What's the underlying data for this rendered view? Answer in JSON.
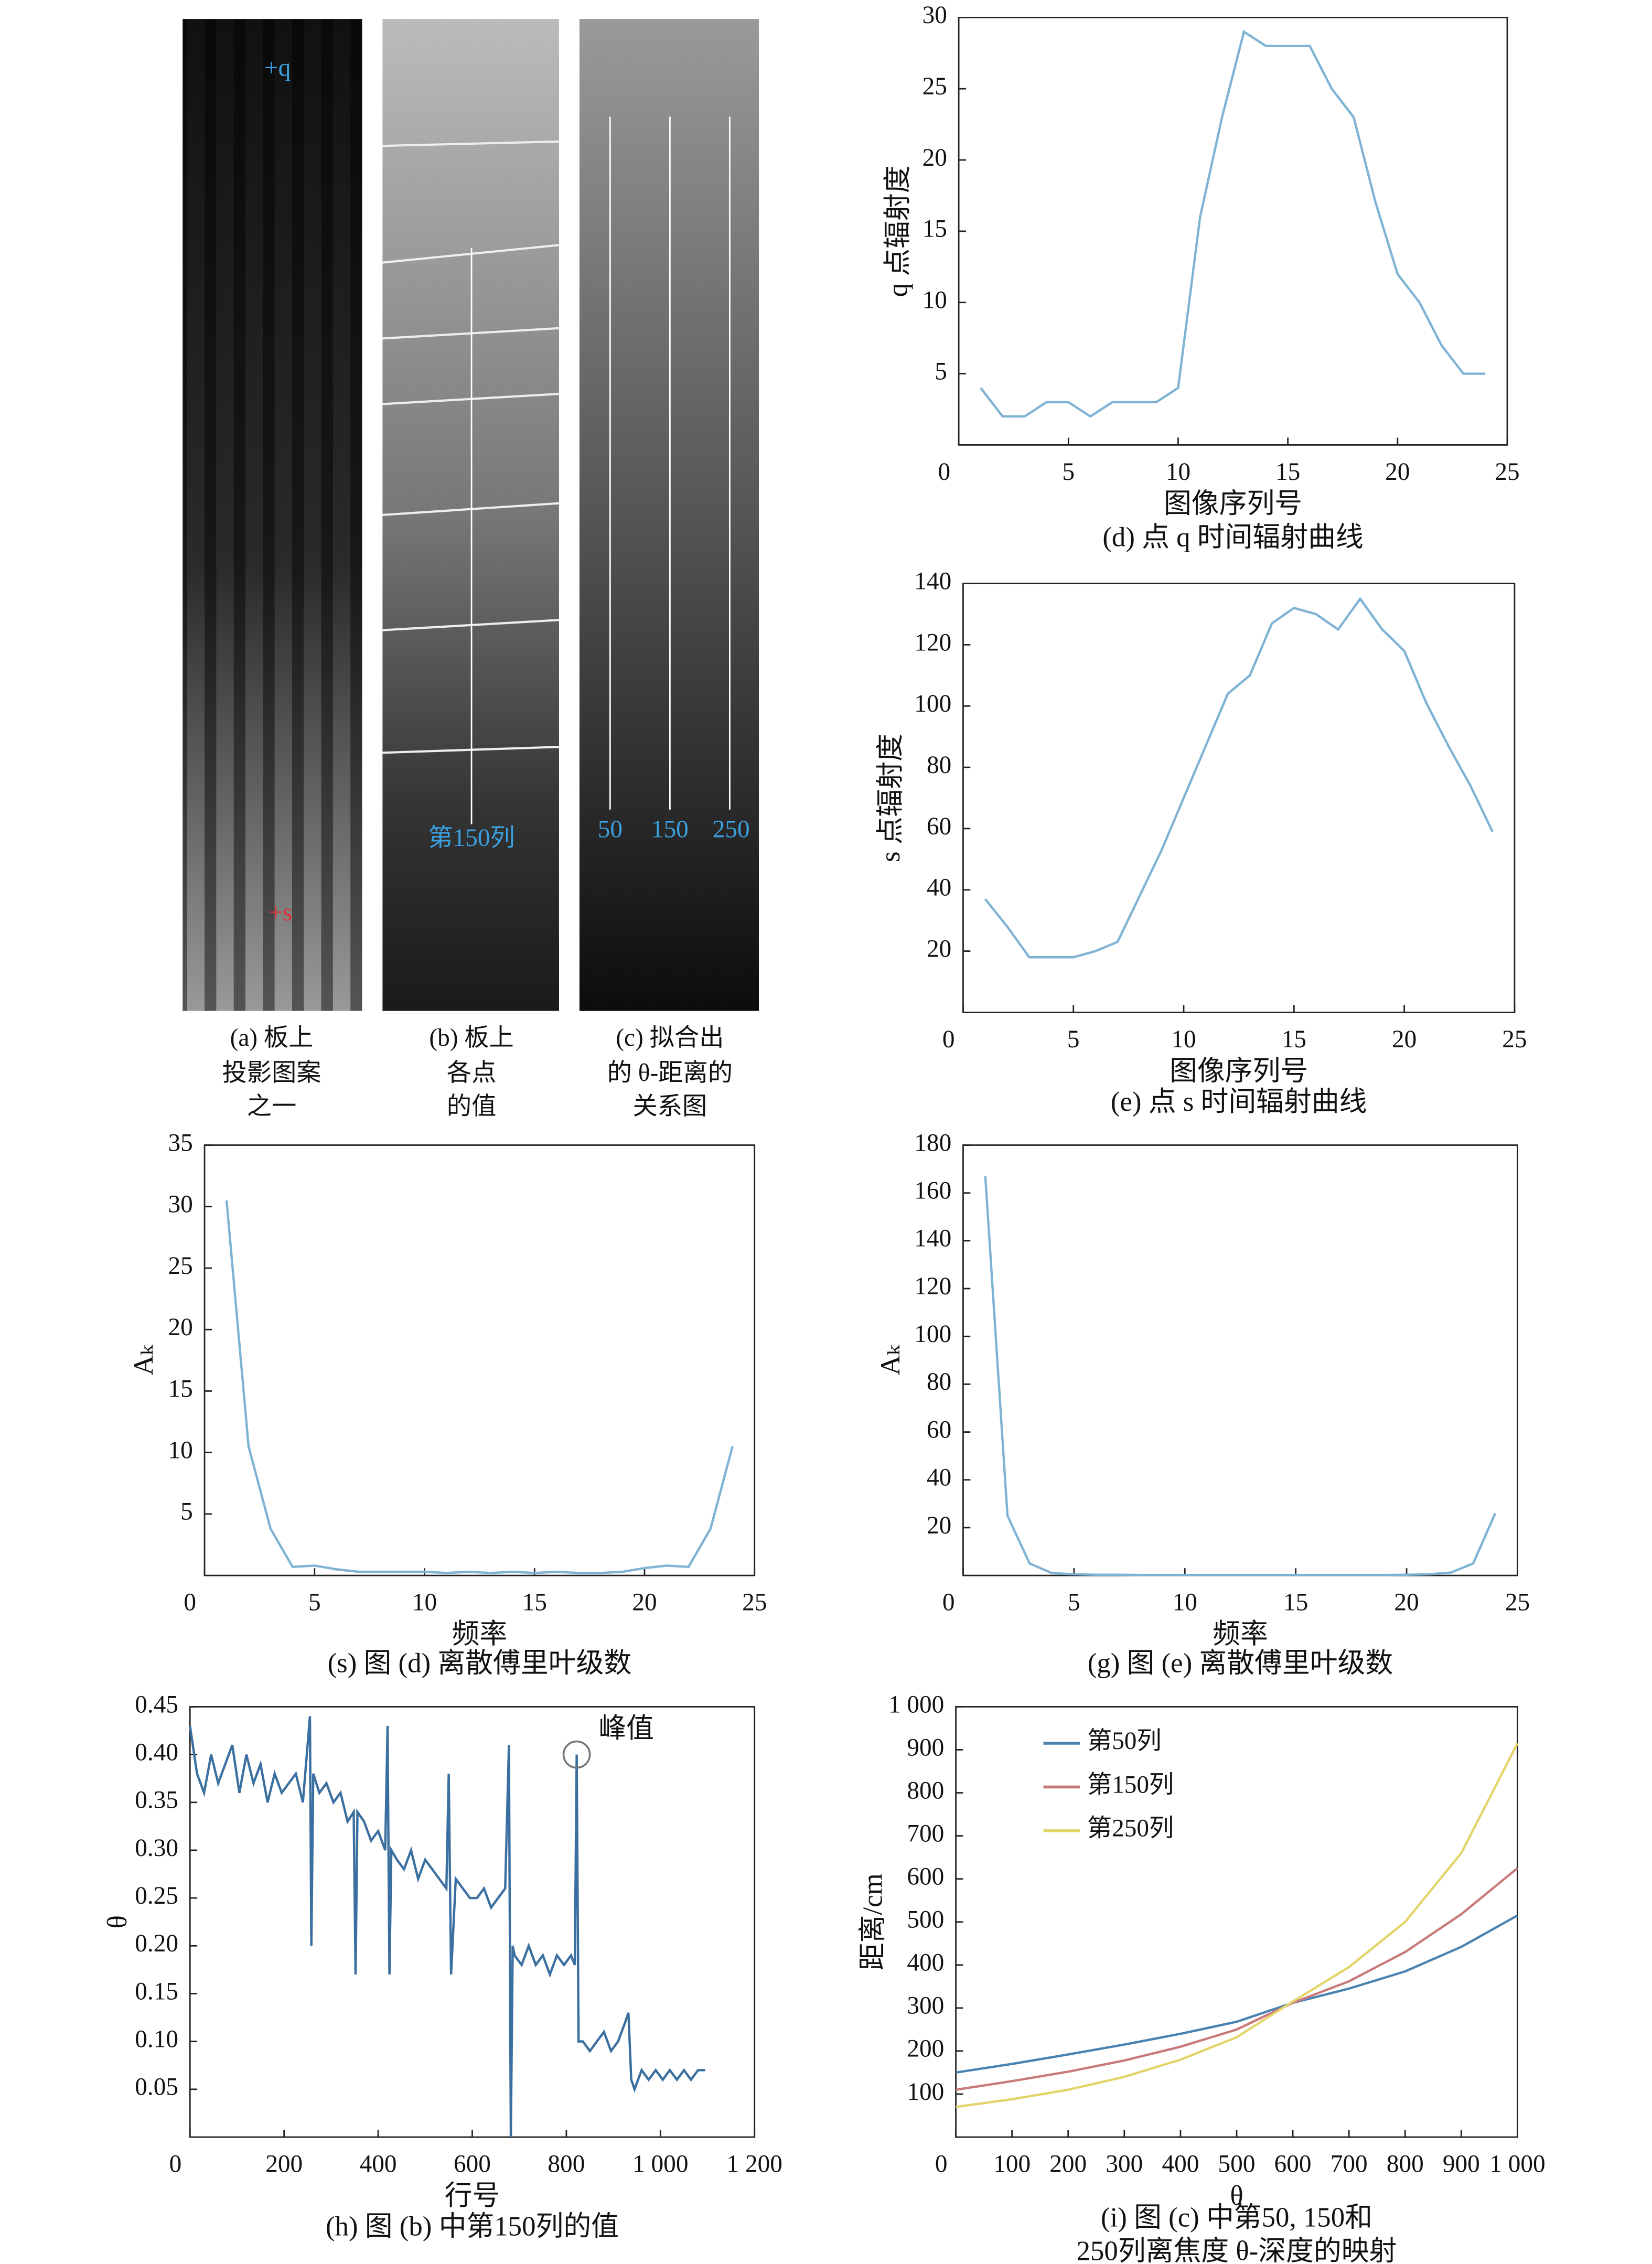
{
  "chart_data": [
    {
      "type": "image",
      "caption": [
        "(a) 板上",
        "投影图案",
        "之一"
      ],
      "annotations": [
        "+q",
        "+s"
      ]
    },
    {
      "type": "image",
      "caption": [
        "(b) 板上",
        "各点",
        "的值"
      ],
      "annotations": [
        "第150列"
      ]
    },
    {
      "type": "image",
      "caption": [
        "(c) 拟合出",
        "的 θ-距离的",
        "关系图"
      ],
      "annotations": [
        "50",
        "150",
        "250"
      ]
    },
    {
      "type": "line",
      "caption": [
        "(d) 点 q 时间辐射曲线"
      ],
      "xlabel": "图像序列号",
      "ylabel": "q 点辐射度",
      "color": "#7fb3d5",
      "x": [
        1,
        2,
        3,
        4,
        5,
        6,
        7,
        8,
        9,
        10,
        11,
        12,
        13,
        14,
        15,
        16,
        17,
        18,
        19,
        20,
        21,
        22,
        23,
        24
      ],
      "values": [
        4,
        2,
        2,
        3,
        3,
        2,
        3,
        3,
        3,
        4,
        16,
        23,
        29,
        28,
        28,
        28,
        25,
        23,
        17,
        12,
        10,
        7,
        5,
        5
      ],
      "xlim": [
        0,
        25
      ],
      "xticks": [
        0,
        5,
        10,
        15,
        20,
        25
      ],
      "ylim": [
        0,
        30
      ],
      "yticks": [
        5,
        10,
        15,
        20,
        25,
        30
      ]
    },
    {
      "type": "line",
      "caption": [
        "(e) 点 s 时间辐射曲线"
      ],
      "xlabel": "图像序列号",
      "ylabel": "s 点辐射度",
      "color": "#7fb3d5",
      "x": [
        1,
        2,
        3,
        4,
        5,
        6,
        7,
        8,
        9,
        10,
        11,
        12,
        13,
        14,
        15,
        16,
        17,
        18,
        19,
        20,
        21,
        22,
        23,
        24
      ],
      "values": [
        37,
        28,
        18,
        18,
        18,
        20,
        23,
        38,
        53,
        70,
        87,
        104,
        110,
        127,
        132,
        130,
        125,
        135,
        125,
        118,
        101,
        87,
        74,
        59
      ],
      "xlim": [
        0,
        25
      ],
      "xticks": [
        0,
        5,
        10,
        15,
        20,
        25
      ],
      "ylim": [
        0,
        140
      ],
      "yticks": [
        20,
        40,
        60,
        80,
        100,
        120,
        140
      ]
    },
    {
      "type": "line",
      "caption": [
        "(s) 图 (d) 离散傅里叶级数"
      ],
      "xlabel": "频率",
      "ylabel": "Aₖ",
      "color": "#7fb3d5",
      "x": [
        1,
        2,
        3,
        4,
        5,
        6,
        7,
        8,
        9,
        10,
        11,
        12,
        13,
        14,
        15,
        16,
        17,
        18,
        19,
        20,
        21,
        22,
        23,
        24
      ],
      "values": [
        30.5,
        10.5,
        3.8,
        0.7,
        0.8,
        0.5,
        0.3,
        0.3,
        0.3,
        0.3,
        0.2,
        0.3,
        0.2,
        0.3,
        0.2,
        0.3,
        0.2,
        0.2,
        0.3,
        0.6,
        0.8,
        0.7,
        3.8,
        10.5
      ],
      "xlim": [
        0,
        25
      ],
      "xticks": [
        0,
        5,
        10,
        15,
        20,
        25
      ],
      "ylim": [
        0,
        35
      ],
      "yticks": [
        5,
        10,
        15,
        20,
        25,
        30,
        35
      ]
    },
    {
      "type": "line",
      "caption": [
        "(g) 图 (e) 离散傅里叶级数"
      ],
      "xlabel": "频率",
      "ylabel": "Aₖ",
      "color": "#7fb3d5",
      "x": [
        1,
        2,
        3,
        4,
        5,
        6,
        7,
        8,
        9,
        10,
        11,
        12,
        13,
        14,
        15,
        16,
        17,
        18,
        19,
        20,
        21,
        22,
        23,
        24
      ],
      "values": [
        167,
        25,
        5,
        1,
        0.5,
        0.3,
        0.3,
        0.2,
        0.2,
        0.2,
        0.2,
        0.2,
        0.2,
        0.2,
        0.2,
        0.2,
        0.2,
        0.2,
        0.2,
        0.3,
        0.5,
        1.2,
        5,
        26
      ],
      "xlim": [
        0,
        25
      ],
      "xticks": [
        0,
        5,
        10,
        15,
        20,
        25
      ],
      "ylim": [
        0,
        180
      ],
      "yticks": [
        20,
        40,
        60,
        80,
        100,
        120,
        140,
        160,
        180
      ]
    },
    {
      "type": "line",
      "caption": [
        "(h) 图 (b) 中第150列的值"
      ],
      "xlabel": "行号",
      "ylabel": "θ",
      "color": "#3a6f9f",
      "x": [
        0,
        15,
        30,
        45,
        60,
        75,
        90,
        105,
        120,
        135,
        150,
        165,
        180,
        195,
        210,
        225,
        240,
        255,
        258,
        262,
        275,
        290,
        305,
        320,
        335,
        348,
        352,
        356,
        370,
        385,
        400,
        415,
        420,
        424,
        428,
        440,
        455,
        470,
        485,
        500,
        515,
        530,
        545,
        550,
        555,
        565,
        580,
        595,
        610,
        625,
        640,
        655,
        670,
        678,
        682,
        686,
        690,
        705,
        720,
        735,
        750,
        765,
        780,
        795,
        810,
        818,
        822,
        826,
        835,
        850,
        865,
        880,
        895,
        910,
        925,
        932,
        938,
        945,
        960,
        975,
        990,
        1005,
        1020,
        1035,
        1050,
        1065,
        1080,
        1095
      ],
      "values": [
        0.43,
        0.38,
        0.36,
        0.4,
        0.37,
        0.39,
        0.41,
        0.36,
        0.4,
        0.37,
        0.39,
        0.35,
        0.38,
        0.36,
        0.37,
        0.38,
        0.35,
        0.44,
        0.2,
        0.38,
        0.36,
        0.37,
        0.35,
        0.36,
        0.33,
        0.34,
        0.17,
        0.34,
        0.33,
        0.31,
        0.32,
        0.3,
        0.43,
        0.17,
        0.3,
        0.29,
        0.28,
        0.3,
        0.27,
        0.29,
        0.28,
        0.27,
        0.26,
        0.38,
        0.17,
        0.27,
        0.26,
        0.25,
        0.25,
        0.26,
        0.24,
        0.25,
        0.26,
        0.41,
        0.0,
        0.2,
        0.19,
        0.18,
        0.2,
        0.18,
        0.19,
        0.17,
        0.19,
        0.18,
        0.19,
        0.18,
        0.4,
        0.1,
        0.1,
        0.09,
        0.1,
        0.11,
        0.09,
        0.1,
        0.12,
        0.13,
        0.06,
        0.05,
        0.07,
        0.06,
        0.07,
        0.06,
        0.07,
        0.06,
        0.07,
        0.06,
        0.07,
        0.07
      ],
      "xlim": [
        0,
        1200
      ],
      "xticks": [
        0,
        200,
        400,
        600,
        800,
        {
          "value": 1000,
          "label": "1 000"
        },
        {
          "value": 1200,
          "label": "1 200"
        }
      ],
      "ylim": [
        0,
        0.45
      ],
      "yticks": [
        0.05,
        {
          "value": 0.1,
          "label": "0.10"
        },
        0.15,
        {
          "value": 0.2,
          "label": "0.20"
        },
        0.25,
        {
          "value": 0.3,
          "label": "0.30"
        },
        0.35,
        {
          "value": 0.4,
          "label": "0.40"
        },
        0.45
      ],
      "annotations": [
        {
          "text": "峰值",
          "x": 822,
          "y": 0.4
        }
      ]
    },
    {
      "type": "line",
      "caption": [
        "(i) 图 (c) 中第50, 150和",
        "250列离焦度 θ-深度的映射"
      ],
      "xlabel": "θ",
      "ylabel": "距离/cm",
      "legend": "upper left",
      "x": [
        0,
        100,
        200,
        300,
        400,
        500,
        600,
        700,
        800,
        900,
        1000
      ],
      "series": [
        {
          "name": "第50列",
          "color": "#4a82b0",
          "values": [
            150,
            170,
            192,
            215,
            240,
            268,
            312,
            345,
            385,
            442,
            515
          ]
        },
        {
          "name": "第150列",
          "color": "#c87a7a",
          "values": [
            110,
            130,
            152,
            178,
            210,
            250,
            312,
            362,
            430,
            518,
            625
          ]
        },
        {
          "name": "第250列",
          "color": "#e3d46a",
          "values": [
            70,
            88,
            110,
            140,
            180,
            232,
            315,
            395,
            500,
            660,
            915
          ]
        }
      ],
      "xlim": [
        0,
        1000
      ],
      "xticks": [
        0,
        100,
        200,
        300,
        400,
        500,
        600,
        700,
        800,
        900,
        {
          "value": 1000,
          "label": "1 000"
        }
      ],
      "ylim": [
        0,
        1000
      ],
      "yticks": [
        100,
        200,
        300,
        400,
        500,
        600,
        700,
        800,
        900,
        {
          "value": 1000,
          "label": "1 000"
        }
      ]
    }
  ]
}
